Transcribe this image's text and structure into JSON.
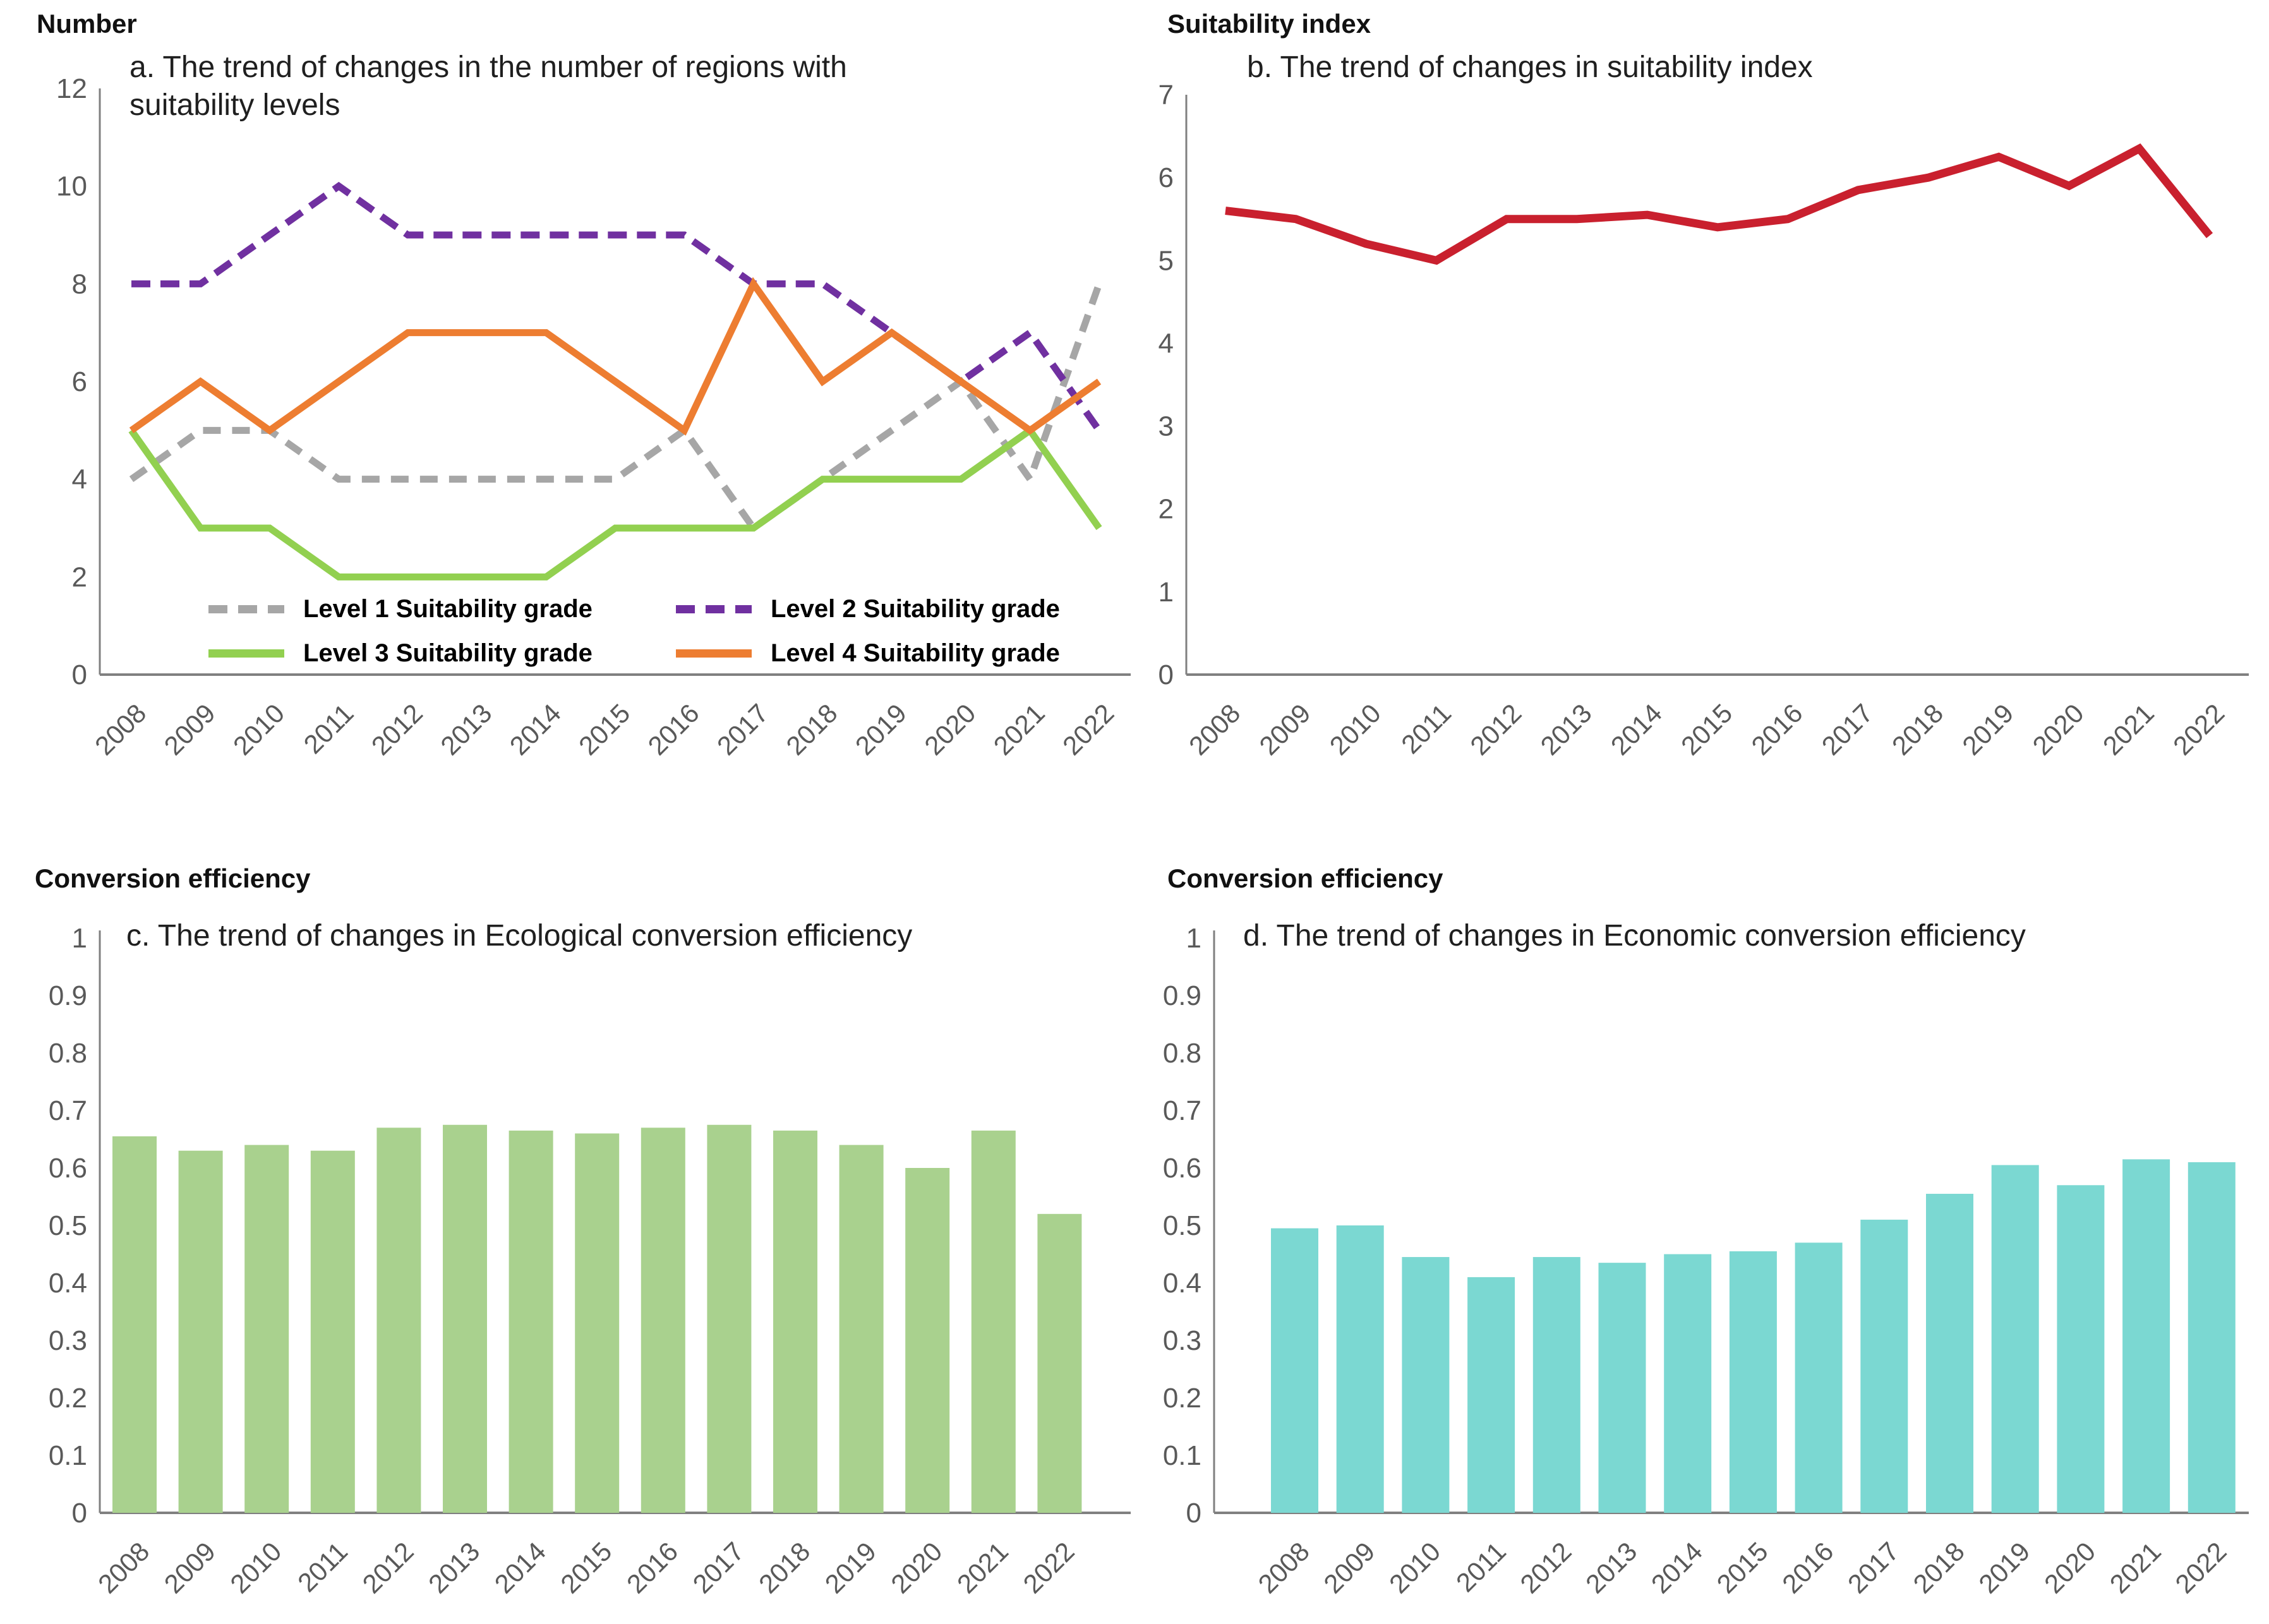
{
  "years": [
    "2008",
    "2009",
    "2010",
    "2011",
    "2012",
    "2013",
    "2014",
    "2015",
    "2016",
    "2017",
    "2018",
    "2019",
    "2020",
    "2021",
    "2022"
  ],
  "colors": {
    "level1_gray": "#A6A6A6",
    "level2_purple": "#7030A0",
    "level3_green": "#92D050",
    "level4_orange": "#ED7D31",
    "suitability_red": "#C9202E",
    "eco_bar_green": "#A9D18E",
    "econ_bar_cyan": "#7BD8D2",
    "axis_line": "#808080",
    "tick_text": "#595959",
    "title_text": "#1f1f1f"
  },
  "chart_data": [
    {
      "type": "line",
      "panel": "a",
      "title_lines": [
        "a. The trend of changes in the number of regions with",
        "suitability levels"
      ],
      "ylabel": "Number",
      "xlabel": "",
      "ylim": [
        0,
        12
      ],
      "yticks": [
        0,
        2,
        4,
        6,
        8,
        10,
        12
      ],
      "ytick_labels": [
        "0",
        "2",
        "4",
        "6",
        "8",
        "10",
        "12"
      ],
      "grid": false,
      "legend_position": "inside-bottom",
      "categories": [
        "2008",
        "2009",
        "2010",
        "2011",
        "2012",
        "2013",
        "2014",
        "2015",
        "2016",
        "2017",
        "2018",
        "2019",
        "2020",
        "2021",
        "2022"
      ],
      "series": [
        {
          "name": "Level 1 Suitability grade",
          "color": "#A6A6A6",
          "dash": "28 18",
          "values": [
            4,
            5,
            5,
            4,
            4,
            4,
            4,
            4,
            5,
            3,
            4,
            5,
            6,
            4,
            8
          ]
        },
        {
          "name": "Level 2 Suitability grade",
          "color": "#7030A0",
          "dash": "30 16",
          "values": [
            8,
            8,
            9,
            10,
            9,
            9,
            9,
            9,
            9,
            8,
            8,
            7,
            6,
            7,
            5
          ]
        },
        {
          "name": "Level 3 Suitability grade",
          "color": "#92D050",
          "dash": null,
          "values": [
            5,
            3,
            3,
            2,
            2,
            2,
            2,
            3,
            3,
            3,
            4,
            4,
            4,
            5,
            3
          ]
        },
        {
          "name": "Level 4 Suitability grade",
          "color": "#ED7D31",
          "dash": null,
          "values": [
            5,
            6,
            5,
            6,
            7,
            7,
            7,
            6,
            5,
            8,
            6,
            7,
            6,
            5,
            6
          ]
        }
      ]
    },
    {
      "type": "line",
      "panel": "b",
      "title_lines": [
        "b. The trend of changes in suitability index"
      ],
      "ylabel": "Suitability index",
      "xlabel": "",
      "ylim": [
        0,
        7
      ],
      "yticks": [
        0,
        1,
        2,
        3,
        4,
        5,
        6,
        7
      ],
      "ytick_labels": [
        "0",
        "1",
        "2",
        "3",
        "4",
        "5",
        "6",
        "7"
      ],
      "grid": false,
      "legend_position": "none",
      "categories": [
        "2008",
        "2009",
        "2010",
        "2011",
        "2012",
        "2013",
        "2014",
        "2015",
        "2016",
        "2017",
        "2018",
        "2019",
        "2020",
        "2021",
        "2022"
      ],
      "series": [
        {
          "name": "Suitability index",
          "color": "#C9202E",
          "dash": null,
          "values": [
            5.6,
            5.5,
            5.2,
            5.0,
            5.5,
            5.5,
            5.55,
            5.4,
            5.5,
            5.85,
            6.0,
            6.25,
            5.9,
            6.35,
            5.3
          ]
        }
      ]
    },
    {
      "type": "bar",
      "panel": "c",
      "title_lines": [
        "c. The trend of changes in Ecological conversion efficiency"
      ],
      "ylabel": "Conversion efficiency",
      "xlabel": "",
      "ylim": [
        0,
        1
      ],
      "yticks": [
        0,
        0.1,
        0.2,
        0.3,
        0.4,
        0.5,
        0.6,
        0.7,
        0.8,
        0.9,
        1
      ],
      "ytick_labels": [
        "0",
        "0.1",
        "0.2",
        "0.3",
        "0.4",
        "0.5",
        "0.6",
        "0.7",
        "0.8",
        "0.9",
        "1"
      ],
      "grid": false,
      "bar_color": "#A9D18E",
      "categories": [
        "2008",
        "2009",
        "2010",
        "2011",
        "2012",
        "2013",
        "2014",
        "2015",
        "2016",
        "2017",
        "2018",
        "2019",
        "2020",
        "2021",
        "2022"
      ],
      "values": [
        0.655,
        0.63,
        0.64,
        0.63,
        0.67,
        0.675,
        0.665,
        0.66,
        0.67,
        0.675,
        0.665,
        0.64,
        0.6,
        0.665,
        0.52
      ]
    },
    {
      "type": "bar",
      "panel": "d",
      "title_lines": [
        "d. The trend of changes in Economic conversion efficiency"
      ],
      "ylabel": "Conversion efficiency",
      "xlabel": "",
      "ylim": [
        0,
        1
      ],
      "yticks": [
        0,
        0.1,
        0.2,
        0.3,
        0.4,
        0.5,
        0.6,
        0.7,
        0.8,
        0.9,
        1
      ],
      "ytick_labels": [
        "0",
        "0.1",
        "0.2",
        "0.3",
        "0.4",
        "0.5",
        "0.6",
        "0.7",
        "0.8",
        "0.9",
        "1"
      ],
      "grid": false,
      "bar_color": "#7BD8D2",
      "categories": [
        "2008",
        "2009",
        "2010",
        "2011",
        "2012",
        "2013",
        "2014",
        "2015",
        "2016",
        "2017",
        "2018",
        "2019",
        "2020",
        "2021",
        "2022"
      ],
      "values": [
        0.495,
        0.5,
        0.445,
        0.41,
        0.445,
        0.435,
        0.45,
        0.455,
        0.47,
        0.51,
        0.555,
        0.605,
        0.57,
        0.615,
        0.61
      ]
    }
  ]
}
